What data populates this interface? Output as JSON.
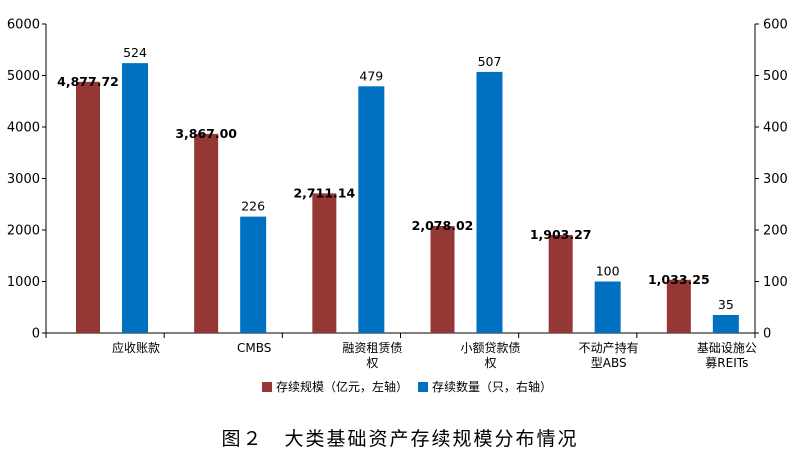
{
  "caption": "图２　大类基础资产存续规模分布情况",
  "chart_data": {
    "type": "bar",
    "categories": [
      "应收账款",
      "CMBS",
      "融资租赁债权",
      "小额贷款债权",
      "不动产持有型ABS",
      "基础设施公募REITs"
    ],
    "category_lines": [
      [
        "应收账款"
      ],
      [
        "CMBS"
      ],
      [
        "融资租赁债",
        "权"
      ],
      [
        "小额贷款债",
        "权"
      ],
      [
        "不动产持有",
        "型ABS"
      ],
      [
        "基础设施公",
        "募REITs"
      ]
    ],
    "series": [
      {
        "name": "存续规模（亿元，左轴）",
        "axis": "left",
        "color": "#953735",
        "values": [
          4877.72,
          3867.0,
          2711.14,
          2078.02,
          1903.27,
          1033.25
        ],
        "labels": [
          "4,877.72",
          "3,867.00",
          "2,711.14",
          "2,078.02",
          "1,903.27",
          "1,033.25"
        ]
      },
      {
        "name": "存续数量（只，右轴）",
        "axis": "right",
        "color": "#0070c0",
        "values": [
          524,
          226,
          479,
          507,
          100,
          35
        ],
        "labels": [
          "524",
          "226",
          "479",
          "507",
          "100",
          "35"
        ]
      }
    ],
    "y_left": {
      "ticks": [
        "0",
        "1000",
        "2000",
        "3000",
        "4000",
        "5000",
        "6000"
      ],
      "lim": [
        0,
        6000
      ]
    },
    "y_right": {
      "ticks": [
        "0",
        "100",
        "200",
        "300",
        "400",
        "500",
        "600"
      ],
      "lim": [
        0,
        600
      ]
    },
    "grid": false,
    "legend_position": "bottom"
  }
}
